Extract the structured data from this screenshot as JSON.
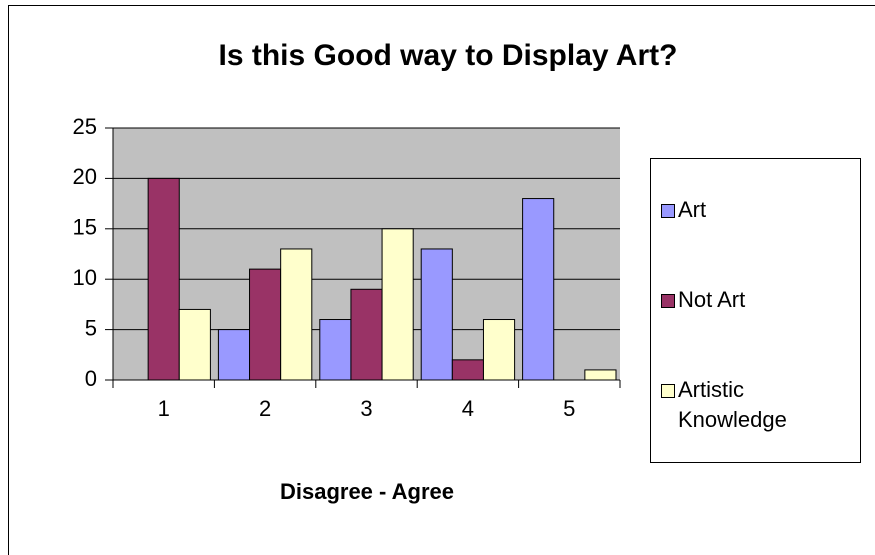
{
  "chart_data": {
    "type": "bar",
    "title": "Is this Good way to Display Art?",
    "x_label": "Disagree - Agree",
    "categories": [
      "1",
      "2",
      "3",
      "4",
      "5"
    ],
    "series": [
      {
        "name": "Art",
        "color": "#9999ff",
        "values": [
          0,
          5,
          6,
          13,
          18
        ]
      },
      {
        "name": "Not Art",
        "color": "#993366",
        "values": [
          20,
          11,
          9,
          2,
          0
        ]
      },
      {
        "name": "Artistic Knowledge",
        "color": "#ffffcc",
        "values": [
          7,
          13,
          15,
          6,
          1
        ]
      }
    ],
    "ylim": [
      0,
      25
    ],
    "yticks": [
      0,
      5,
      10,
      15,
      20,
      25
    ],
    "grid": true,
    "legend": "right"
  }
}
